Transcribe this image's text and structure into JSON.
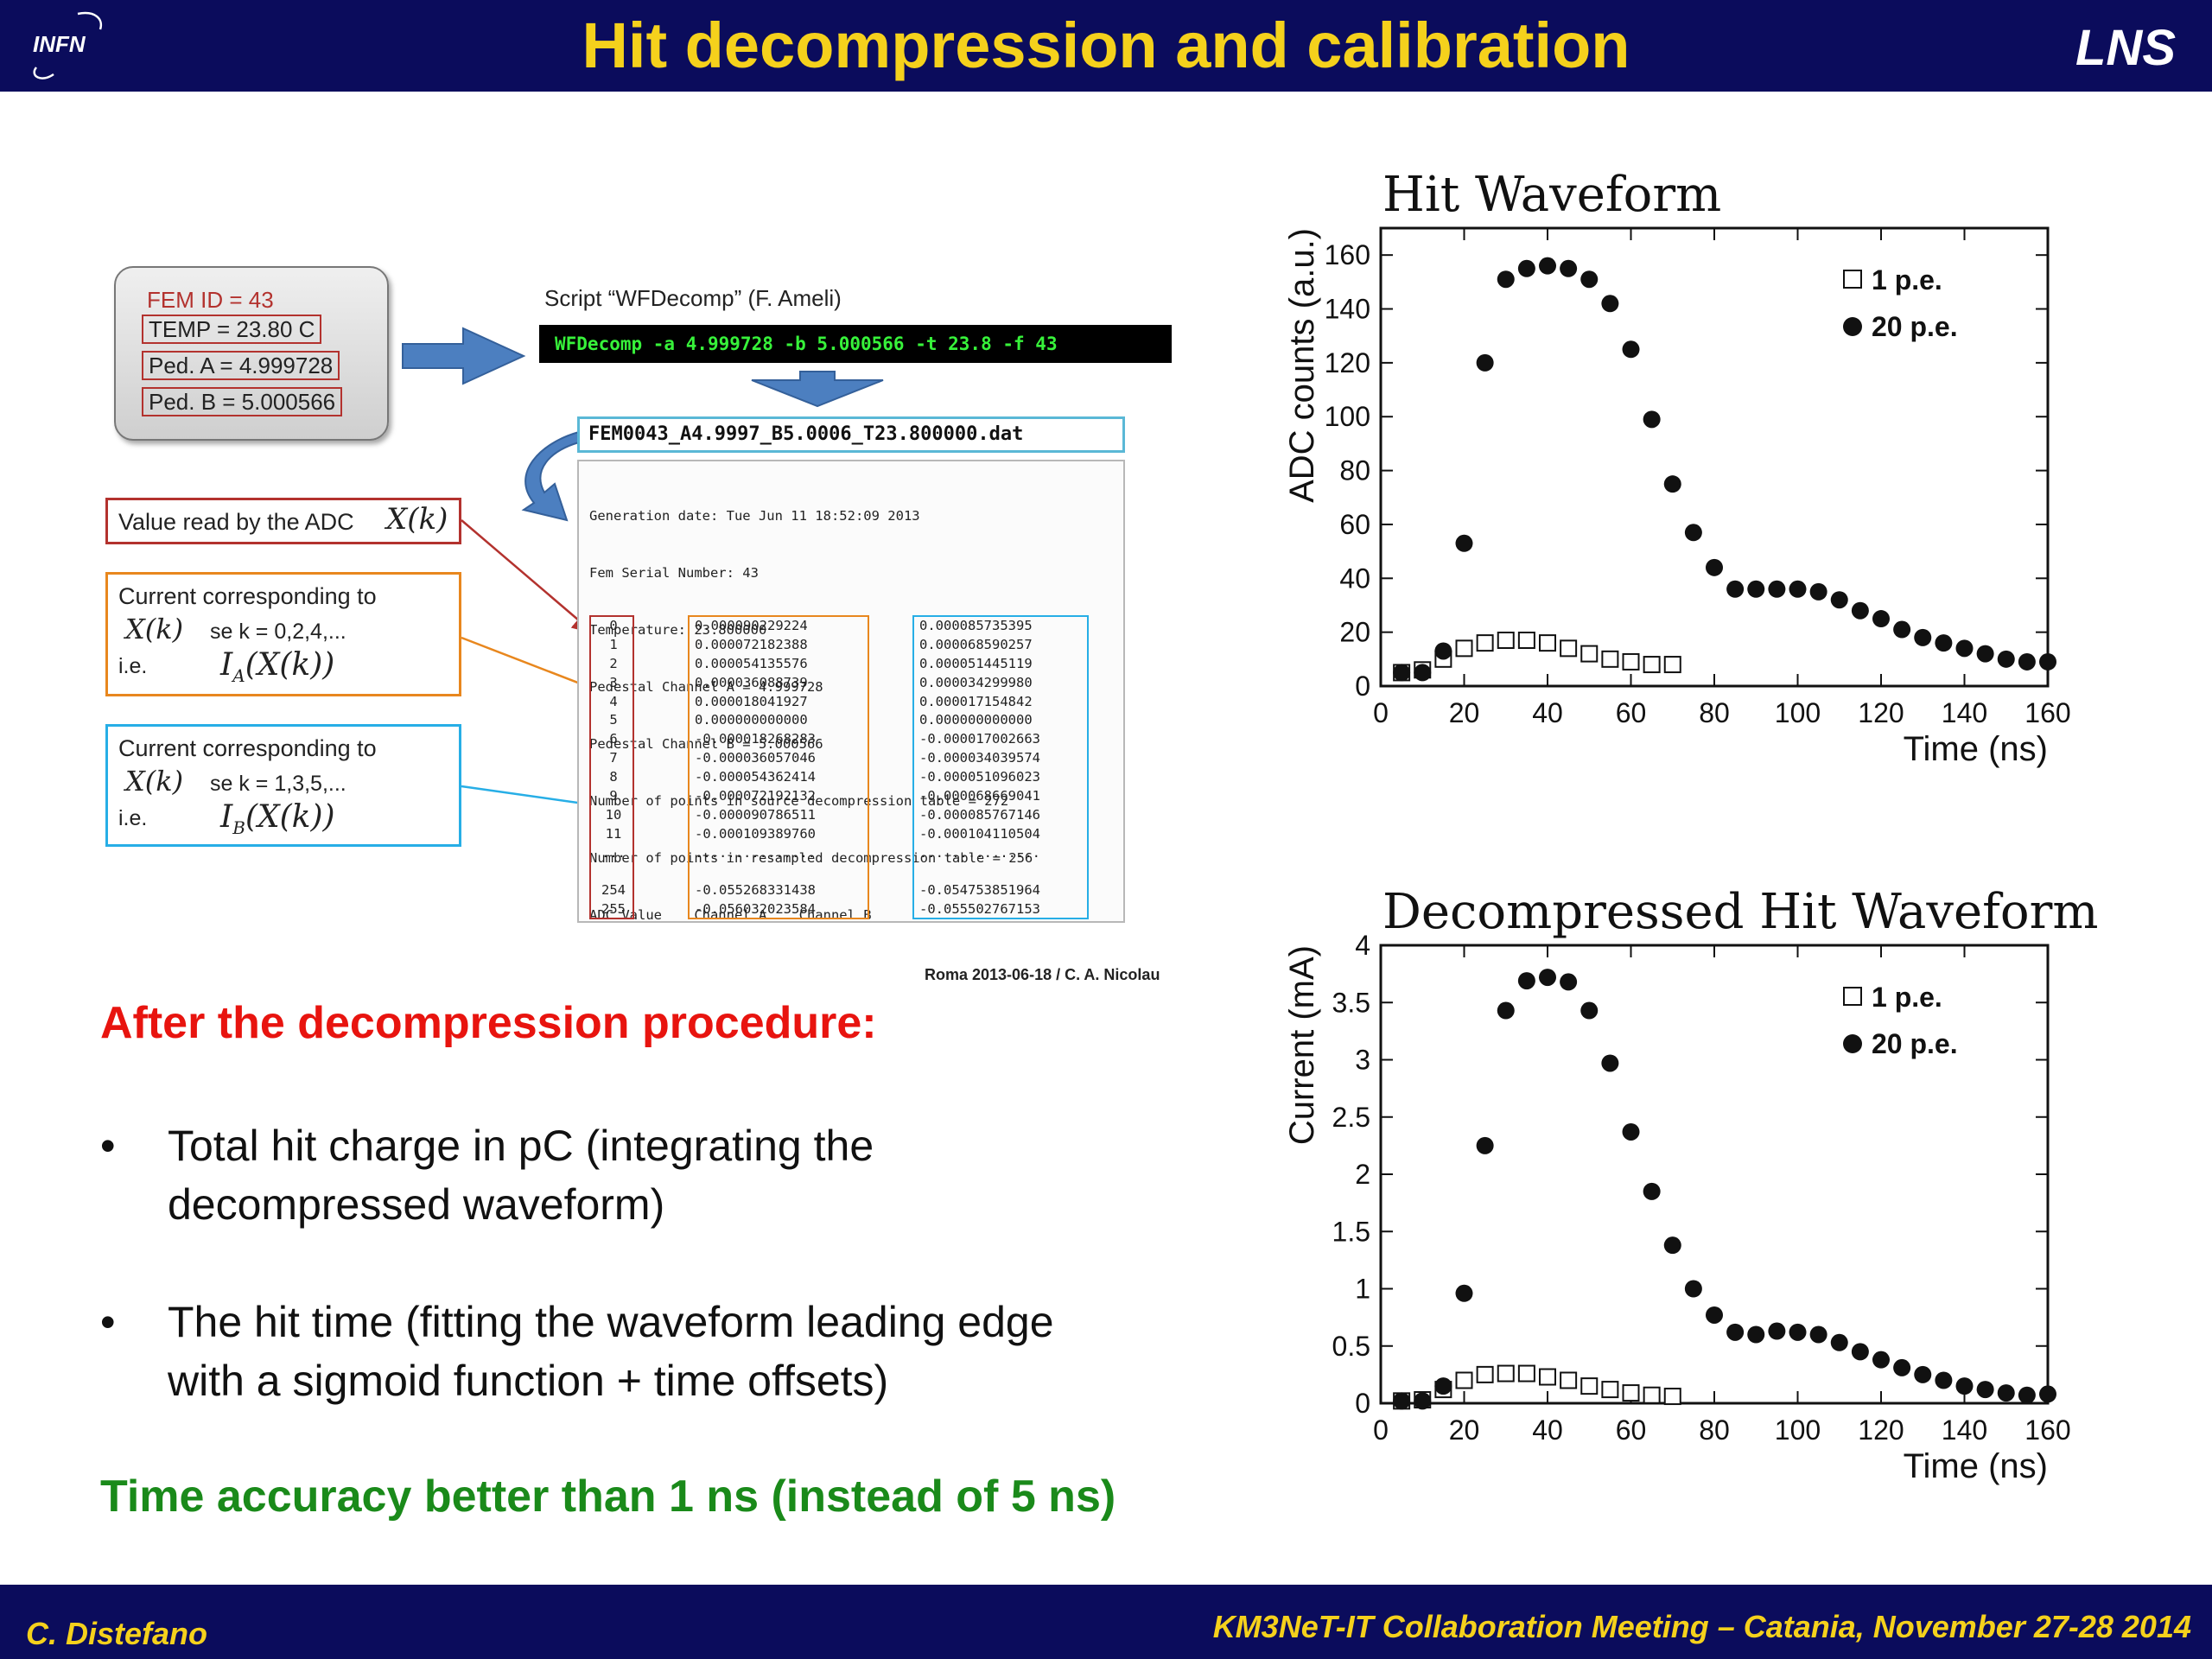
{
  "header": {
    "title": "Hit decompression and calibration",
    "right_label": "LNS",
    "logo_text": "INFN"
  },
  "footer": {
    "author": "C. Distefano",
    "event": "KM3NeT-IT Collaboration Meeting – Catania, November 27-28 2014"
  },
  "figure": {
    "fem": {
      "id": "FEM ID = 43",
      "temp": "TEMP = 23.80 C",
      "ped_a": "Ped. A = 4.999728",
      "ped_b": "Ped. B = 5.000566"
    },
    "script_label": "Script “WFDecomp” (F. Ameli)",
    "command": "WFDecomp -a 4.999728 -b 5.000566 -t 23.8 -f 43",
    "filename": "FEM0043_A4.9997_B5.0006_T23.800000.dat",
    "meta_lines": [
      "Generation date: Tue Jun 11 18:52:09 2013",
      "Fem Serial Number: 43",
      "Temperature: 23.800000",
      "Pedestal Channel A = 4.999728",
      "Pedestal Channel B = 5.000566",
      "Number of points in source decompression table = 272",
      "Number of points in resampled decompression table = 256",
      "ADC Value    Channel A    Channel B"
    ],
    "adc_values": [
      "0",
      "1",
      "2",
      "3",
      "4",
      "5",
      "6",
      "7",
      "8",
      "9",
      "10",
      "11",
      "...",
      "",
      "254",
      "255"
    ],
    "channel_a": [
      "0.000090229224",
      "0.000072182388",
      "0.000054135576",
      "0.000036088739",
      "0.000018041927",
      "0.000000000000",
      "-0.000018268283",
      "-0.000036057046",
      "-0.000054362414",
      "-0.000072192132",
      "-0.000090786511",
      "-0.000109389760",
      "...............",
      "",
      "-0.055268331438",
      "-0.056032023584"
    ],
    "channel_b": [
      "0.000085735395",
      "0.000068590257",
      "0.000051445119",
      "0.000034299980",
      "0.000017154842",
      "0.000000000000",
      "-0.000017002663",
      "-0.000034039574",
      "-0.000051096023",
      "-0.000068669041",
      "-0.000085767146",
      "-0.000104110504",
      "...............",
      "",
      "-0.054753851964",
      "-0.055502767153"
    ],
    "ann_adc_text": "Value read by the ADC",
    "ann_adc_math": "X(k)",
    "ann_a_line1": "Current corresponding to",
    "ann_a_math": "X(k)",
    "ann_a_line2": "se k = 0,2,4,...",
    "ann_a_ie": "i.e.",
    "ann_a_formula": "I",
    "ann_a_sub": "A",
    "ann_a_formula_tail": "(X(k))",
    "ann_b_line1": "Current corresponding to",
    "ann_b_math": "X(k)",
    "ann_b_line2": "se k = 1,3,5,...",
    "ann_b_ie": "i.e.",
    "ann_b_formula": "I",
    "ann_b_sub": "B",
    "ann_b_formula_tail": "(X(k))",
    "credit": "Roma 2013-06-18 / C. A. Nicolau"
  },
  "text": {
    "after": "After the decompression procedure:",
    "bullet_symbol": "•",
    "bullet1_line1": "Total hit charge in pC (integrating the",
    "bullet1_line2": "decompressed waveform)",
    "bullet2_line1": "The hit time (fitting the waveform leading edge",
    "bullet2_line2": "with a sigmoid function + time offsets)",
    "accuracy": "Time accuracy better than 1 ns (instead of 5 ns)"
  },
  "colors": {
    "header_bg": "#0b0c5c",
    "title": "#f5d11c",
    "red": "#e8140f",
    "green": "#1a8a1a",
    "fem_red": "#b3322e",
    "orange": "#e8871e",
    "cyan": "#27aee6"
  },
  "chart_data": [
    {
      "type": "scatter",
      "title": "Hit Waveform",
      "xlabel": "Time (ns)",
      "ylabel": "ADC counts (a.u.)",
      "xlim": [
        0,
        160
      ],
      "ylim": [
        0,
        170
      ],
      "xticks": [
        0,
        20,
        40,
        60,
        80,
        100,
        120,
        140,
        160
      ],
      "yticks": [
        0,
        20,
        40,
        60,
        80,
        100,
        120,
        140,
        160
      ],
      "legend": "top-right",
      "grid": false,
      "series": [
        {
          "name": "1 p.e.",
          "marker": "open-square",
          "x": [
            5,
            10,
            15,
            20,
            25,
            30,
            35,
            40,
            45,
            50,
            55,
            60,
            65,
            70
          ],
          "y": [
            5,
            6,
            10,
            14,
            16,
            17,
            17,
            16,
            14,
            12,
            10,
            9,
            8,
            8
          ]
        },
        {
          "name": "20 p.e.",
          "marker": "filled-circle",
          "x": [
            5,
            10,
            15,
            20,
            25,
            30,
            35,
            40,
            45,
            50,
            55,
            60,
            65,
            70,
            75,
            80,
            85,
            90,
            95,
            100,
            105,
            110,
            115,
            120,
            125,
            130,
            135,
            140,
            145,
            150,
            155,
            160
          ],
          "y": [
            5,
            5,
            13,
            53,
            120,
            151,
            155,
            156,
            155,
            151,
            142,
            125,
            99,
            75,
            57,
            44,
            36,
            36,
            36,
            36,
            35,
            32,
            28,
            25,
            21,
            18,
            16,
            14,
            12,
            10,
            9,
            9
          ]
        }
      ]
    },
    {
      "type": "scatter",
      "title": "Decompressed Hit Waveform",
      "xlabel": "Time (ns)",
      "ylabel": "Current (mA)",
      "xlim": [
        0,
        160
      ],
      "ylim": [
        0,
        4
      ],
      "xticks": [
        0,
        20,
        40,
        60,
        80,
        100,
        120,
        140,
        160
      ],
      "yticks": [
        0,
        0.5,
        1,
        1.5,
        2,
        2.5,
        3,
        3.5,
        4
      ],
      "legend": "top-right",
      "grid": false,
      "series": [
        {
          "name": "1 p.e.",
          "marker": "open-square",
          "x": [
            5,
            10,
            15,
            20,
            25,
            30,
            35,
            40,
            45,
            50,
            55,
            60,
            65,
            70
          ],
          "y": [
            0.02,
            0.03,
            0.12,
            0.2,
            0.25,
            0.26,
            0.26,
            0.23,
            0.2,
            0.15,
            0.12,
            0.09,
            0.07,
            0.06
          ]
        },
        {
          "name": "20 p.e.",
          "marker": "filled-circle",
          "x": [
            5,
            10,
            15,
            20,
            25,
            30,
            35,
            40,
            45,
            50,
            55,
            60,
            65,
            70,
            75,
            80,
            85,
            90,
            95,
            100,
            105,
            110,
            115,
            120,
            125,
            130,
            135,
            140,
            145,
            150,
            155,
            160
          ],
          "y": [
            0.02,
            0.02,
            0.15,
            0.96,
            2.25,
            3.43,
            3.69,
            3.72,
            3.68,
            3.43,
            2.97,
            2.37,
            1.85,
            1.38,
            1.0,
            0.77,
            0.62,
            0.6,
            0.63,
            0.62,
            0.6,
            0.53,
            0.45,
            0.38,
            0.31,
            0.25,
            0.2,
            0.15,
            0.12,
            0.09,
            0.07,
            0.08
          ]
        }
      ]
    }
  ]
}
